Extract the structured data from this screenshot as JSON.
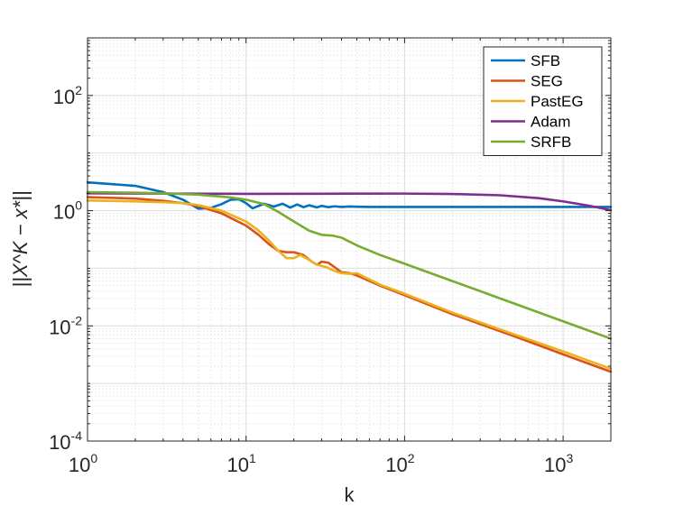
{
  "chart_data": {
    "type": "line",
    "xscale": "log",
    "yscale": "log",
    "xlim": [
      1,
      2000
    ],
    "ylim": [
      0.0001,
      1000
    ],
    "grid": true,
    "minor_grid": true,
    "legend_position": "top-right",
    "xlabel": "k",
    "ylabel": "||X^K − x*||",
    "x_ticks": [
      {
        "base": "10",
        "exp": "0"
      },
      {
        "base": "10",
        "exp": "1"
      },
      {
        "base": "10",
        "exp": "2"
      },
      {
        "base": "10",
        "exp": "3"
      }
    ],
    "y_ticks": [
      {
        "base": "10",
        "exp": "-4"
      },
      {
        "base": "10",
        "exp": "-2"
      },
      {
        "base": "10",
        "exp": "0"
      },
      {
        "base": "10",
        "exp": "2"
      }
    ],
    "series": [
      {
        "name": "SFB",
        "color": "#0072BD",
        "points": [
          [
            1,
            3.1
          ],
          [
            2,
            2.7
          ],
          [
            3,
            2.1
          ],
          [
            4,
            1.55
          ],
          [
            5,
            1.08
          ],
          [
            6,
            1.12
          ],
          [
            7,
            1.3
          ],
          [
            8,
            1.55
          ],
          [
            9,
            1.58
          ],
          [
            10,
            1.35
          ],
          [
            11,
            1.1
          ],
          [
            13,
            1.32
          ],
          [
            15,
            1.18
          ],
          [
            17,
            1.32
          ],
          [
            19,
            1.13
          ],
          [
            21,
            1.28
          ],
          [
            23,
            1.15
          ],
          [
            25,
            1.24
          ],
          [
            28,
            1.14
          ],
          [
            30,
            1.21
          ],
          [
            33,
            1.15
          ],
          [
            36,
            1.19
          ],
          [
            40,
            1.16
          ],
          [
            45,
            1.18
          ],
          [
            50,
            1.17
          ],
          [
            60,
            1.16
          ],
          [
            80,
            1.16
          ],
          [
            150,
            1.16
          ],
          [
            500,
            1.16
          ],
          [
            2000,
            1.16
          ]
        ]
      },
      {
        "name": "SEG",
        "color": "#D95319",
        "points": [
          [
            1,
            1.72
          ],
          [
            2,
            1.62
          ],
          [
            3,
            1.48
          ],
          [
            4,
            1.35
          ],
          [
            5,
            1.2
          ],
          [
            7,
            0.9
          ],
          [
            10,
            0.55
          ],
          [
            12,
            0.38
          ],
          [
            14,
            0.26
          ],
          [
            16,
            0.2
          ],
          [
            18,
            0.19
          ],
          [
            20,
            0.19
          ],
          [
            23,
            0.17
          ],
          [
            26,
            0.13
          ],
          [
            28,
            0.115
          ],
          [
            30,
            0.13
          ],
          [
            33,
            0.125
          ],
          [
            37,
            0.1
          ],
          [
            40,
            0.085
          ],
          [
            45,
            0.082
          ],
          [
            50,
            0.075
          ],
          [
            70,
            0.05
          ],
          [
            100,
            0.034
          ],
          [
            200,
            0.016
          ],
          [
            500,
            0.0065
          ],
          [
            1000,
            0.0032
          ],
          [
            2000,
            0.0016
          ]
        ]
      },
      {
        "name": "PastEG",
        "color": "#EDB120",
        "points": [
          [
            1,
            1.5
          ],
          [
            2,
            1.45
          ],
          [
            3,
            1.4
          ],
          [
            4,
            1.35
          ],
          [
            5,
            1.25
          ],
          [
            7,
            1.0
          ],
          [
            10,
            0.65
          ],
          [
            12,
            0.45
          ],
          [
            14,
            0.3
          ],
          [
            16,
            0.2
          ],
          [
            18,
            0.15
          ],
          [
            20,
            0.15
          ],
          [
            22,
            0.17
          ],
          [
            25,
            0.14
          ],
          [
            28,
            0.115
          ],
          [
            32,
            0.105
          ],
          [
            36,
            0.09
          ],
          [
            40,
            0.082
          ],
          [
            45,
            0.08
          ],
          [
            50,
            0.082
          ],
          [
            55,
            0.072
          ],
          [
            70,
            0.052
          ],
          [
            100,
            0.036
          ],
          [
            200,
            0.017
          ],
          [
            500,
            0.007
          ],
          [
            1000,
            0.0036
          ],
          [
            2000,
            0.0018
          ]
        ]
      },
      {
        "name": "Adam",
        "color": "#7E2F8E",
        "points": [
          [
            1,
            2.0
          ],
          [
            3,
            1.98
          ],
          [
            10,
            1.96
          ],
          [
            30,
            1.97
          ],
          [
            100,
            1.98
          ],
          [
            200,
            1.95
          ],
          [
            400,
            1.85
          ],
          [
            700,
            1.65
          ],
          [
            1000,
            1.45
          ],
          [
            1500,
            1.2
          ],
          [
            2000,
            1.02
          ]
        ]
      },
      {
        "name": "SRFB",
        "color": "#77AC30",
        "points": [
          [
            1,
            2.1
          ],
          [
            2,
            2.05
          ],
          [
            3,
            2.0
          ],
          [
            5,
            1.9
          ],
          [
            8,
            1.7
          ],
          [
            10,
            1.55
          ],
          [
            13,
            1.3
          ],
          [
            16,
            0.95
          ],
          [
            20,
            0.65
          ],
          [
            25,
            0.45
          ],
          [
            30,
            0.38
          ],
          [
            35,
            0.37
          ],
          [
            40,
            0.34
          ],
          [
            50,
            0.25
          ],
          [
            70,
            0.17
          ],
          [
            100,
            0.12
          ],
          [
            200,
            0.06
          ],
          [
            500,
            0.024
          ],
          [
            1000,
            0.012
          ],
          [
            2000,
            0.006
          ]
        ]
      }
    ]
  }
}
